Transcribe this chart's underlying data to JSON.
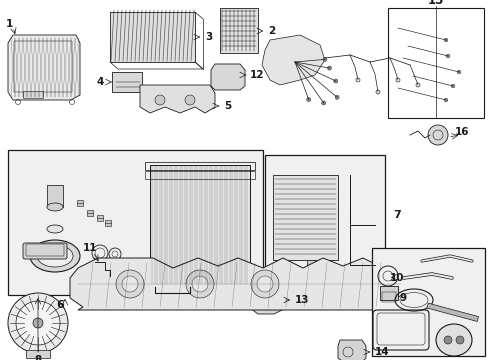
{
  "bg_color": "#ffffff",
  "line_color": "#1a1a1a",
  "gray_fill": "#e8e8e8",
  "light_fill": "#f2f2f2",
  "figsize": [
    4.89,
    3.6
  ],
  "dpi": 100
}
